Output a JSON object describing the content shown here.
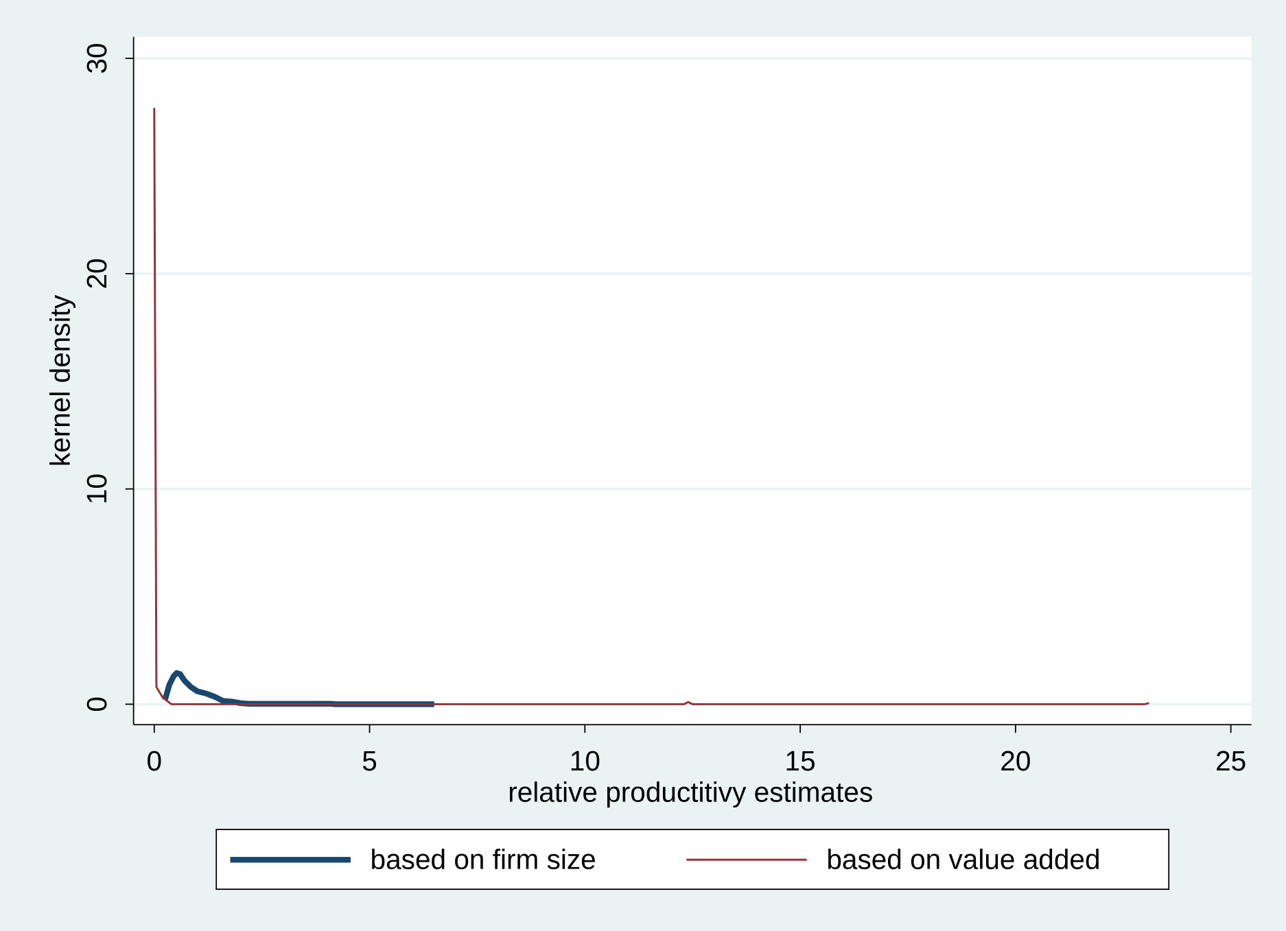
{
  "chart_data": {
    "type": "line",
    "xlabel": "relative productitivy estimates",
    "ylabel": "kernel density",
    "xlim": [
      -0.48,
      25.48
    ],
    "ylim": [
      -0.95,
      31
    ],
    "xticks": [
      0,
      5,
      10,
      15,
      20,
      25
    ],
    "yticks": [
      0,
      10,
      20,
      30
    ],
    "grid": true,
    "legend": "bottom",
    "series": [
      {
        "name": "based on firm size",
        "color": "#1a476f",
        "x": [
          0.25,
          0.35,
          0.45,
          0.52,
          0.6,
          0.7,
          0.85,
          1.0,
          1.2,
          1.4,
          1.6,
          1.8,
          2.0,
          2.2,
          3,
          4.1,
          4.2,
          5,
          6.5
        ],
        "values": [
          0.2,
          0.9,
          1.3,
          1.45,
          1.4,
          1.1,
          0.8,
          0.6,
          0.5,
          0.35,
          0.15,
          0.12,
          0.05,
          0.02,
          0.02,
          0.02,
          0,
          0,
          0
        ]
      },
      {
        "name": "based on value added",
        "color": "#90353b",
        "x": [
          0,
          0.05,
          0.2,
          0.4,
          12.3,
          12.4,
          12.5,
          23,
          23.1
        ],
        "values": [
          27.7,
          0.8,
          0.3,
          0,
          0,
          0.1,
          0,
          0,
          0.05
        ]
      }
    ]
  }
}
